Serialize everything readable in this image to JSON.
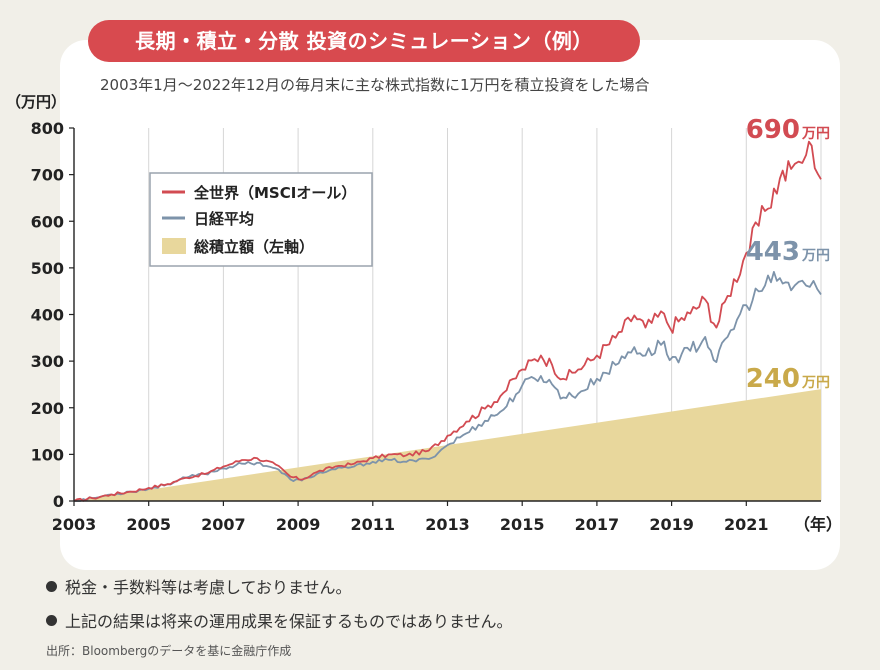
{
  "title": "長期・積立・分散 投資のシミュレーション（例）",
  "subtitle": "2003年1月〜2022年12月の毎月末に主な株式指数に1万円を積立投資をした場合",
  "notes": [
    "税金・手数料等は考慮しておりません。",
    "上記の結果は将来の運用成果を保証するものではありません。"
  ],
  "source": "出所：Bloombergのデータを基に金融庁作成",
  "colors": {
    "world": "#d24b52",
    "nikkei": "#7d93aa",
    "total": "#e8d79c",
    "title_bg": "#d84a4f",
    "end_total": "#c9a94a"
  },
  "chart_data": {
    "type": "line",
    "yunit": "（万円）",
    "xunit": "（年）",
    "ylim": [
      0,
      800
    ],
    "xlim": [
      2003,
      2023
    ],
    "yticks": [
      0,
      100,
      200,
      300,
      400,
      500,
      600,
      700,
      800
    ],
    "xticks": [
      2003,
      2005,
      2007,
      2009,
      2011,
      2013,
      2015,
      2017,
      2019,
      2021
    ],
    "grid": "vertical",
    "legend_position": "top-left",
    "series": [
      {
        "name": "全世界（MSCIオール）",
        "kind": "line",
        "end_label": "690",
        "end_unit": "万円",
        "points": [
          [
            2003,
            0
          ],
          [
            2003.5,
            6
          ],
          [
            2004,
            14
          ],
          [
            2004.5,
            20
          ],
          [
            2005,
            28
          ],
          [
            2005.5,
            36
          ],
          [
            2006,
            50
          ],
          [
            2006.5,
            58
          ],
          [
            2007,
            74
          ],
          [
            2007.5,
            88
          ],
          [
            2007.9,
            92
          ],
          [
            2008.4,
            78
          ],
          [
            2008.8,
            52
          ],
          [
            2009.1,
            46
          ],
          [
            2009.5,
            62
          ],
          [
            2010,
            74
          ],
          [
            2010.5,
            80
          ],
          [
            2011,
            92
          ],
          [
            2011.5,
            100
          ],
          [
            2011.9,
            98
          ],
          [
            2012.5,
            108
          ],
          [
            2013,
            140
          ],
          [
            2013.5,
            170
          ],
          [
            2014,
            198
          ],
          [
            2014.5,
            232
          ],
          [
            2015,
            282
          ],
          [
            2015.5,
            312
          ],
          [
            2015.8,
            292
          ],
          [
            2016.1,
            262
          ],
          [
            2016.5,
            282
          ],
          [
            2017,
            312
          ],
          [
            2017.5,
            350
          ],
          [
            2018,
            398
          ],
          [
            2018.3,
            372
          ],
          [
            2018.8,
            402
          ],
          [
            2018.95,
            372
          ],
          [
            2019.5,
            402
          ],
          [
            2019.9,
            432
          ],
          [
            2020.2,
            372
          ],
          [
            2020.5,
            440
          ],
          [
            2021,
            532
          ],
          [
            2021.5,
            622
          ],
          [
            2021.9,
            692
          ],
          [
            2022.2,
            712
          ],
          [
            2022.4,
            728
          ],
          [
            2022.6,
            742
          ],
          [
            2022.75,
            762
          ],
          [
            2023,
            690
          ]
        ]
      },
      {
        "name": "日経平均",
        "kind": "line",
        "end_label": "443",
        "end_unit": "万円",
        "points": [
          [
            2003,
            0
          ],
          [
            2003.5,
            6
          ],
          [
            2004,
            14
          ],
          [
            2004.5,
            20
          ],
          [
            2005,
            26
          ],
          [
            2005.5,
            36
          ],
          [
            2006,
            50
          ],
          [
            2006.5,
            58
          ],
          [
            2007,
            70
          ],
          [
            2007.5,
            80
          ],
          [
            2007.9,
            82
          ],
          [
            2008.4,
            70
          ],
          [
            2008.8,
            46
          ],
          [
            2009.1,
            44
          ],
          [
            2009.5,
            58
          ],
          [
            2010,
            68
          ],
          [
            2010.5,
            74
          ],
          [
            2011,
            84
          ],
          [
            2011.5,
            88
          ],
          [
            2011.9,
            84
          ],
          [
            2012.5,
            90
          ],
          [
            2013,
            120
          ],
          [
            2013.5,
            145
          ],
          [
            2014,
            172
          ],
          [
            2014.5,
            196
          ],
          [
            2015,
            248
          ],
          [
            2015.5,
            268
          ],
          [
            2015.8,
            250
          ],
          [
            2016.1,
            222
          ],
          [
            2016.5,
            230
          ],
          [
            2017,
            262
          ],
          [
            2017.5,
            292
          ],
          [
            2018,
            330
          ],
          [
            2018.3,
            312
          ],
          [
            2018.8,
            342
          ],
          [
            2018.95,
            302
          ],
          [
            2019.5,
            322
          ],
          [
            2019.9,
            352
          ],
          [
            2020.2,
            298
          ],
          [
            2020.5,
            352
          ],
          [
            2021,
            420
          ],
          [
            2021.5,
            462
          ],
          [
            2021.9,
            478
          ],
          [
            2022.2,
            452
          ],
          [
            2022.4,
            470
          ],
          [
            2022.6,
            462
          ],
          [
            2022.8,
            472
          ],
          [
            2023,
            443
          ]
        ]
      },
      {
        "name": "総積立額（左軸）",
        "kind": "area",
        "end_label": "240",
        "end_unit": "万円",
        "points": [
          [
            2003,
            0
          ],
          [
            2023,
            240
          ]
        ]
      }
    ]
  }
}
